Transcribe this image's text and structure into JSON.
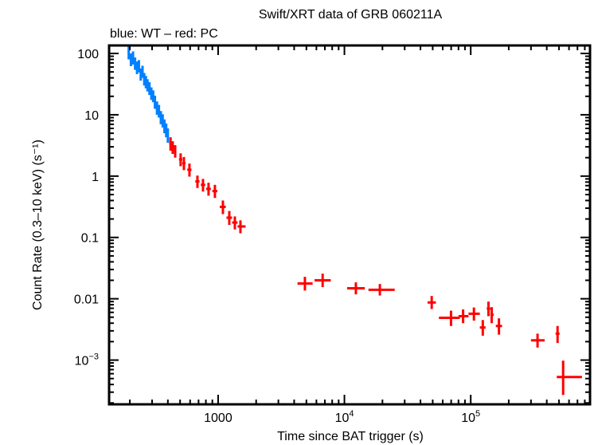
{
  "chart_data": {
    "type": "scatter",
    "title": "Swift/XRT data of GRB 060211A",
    "subtitle": "blue: WT – red: PC",
    "xlabel": "Time since BAT trigger (s)",
    "ylabel": "Count Rate (0.3–10 keV) (s⁻¹)",
    "xscale": "log",
    "yscale": "log",
    "xlim": [
      137,
      880000
    ],
    "ylim": [
      0.00019,
      135
    ],
    "grid": false,
    "x_ticks": [
      {
        "value": 1000,
        "label": "1000",
        "base": "",
        "exp": ""
      },
      {
        "value": 10000,
        "label": "",
        "base": "10",
        "exp": "4"
      },
      {
        "value": 100000,
        "label": "",
        "base": "10",
        "exp": "5"
      }
    ],
    "y_ticks": [
      {
        "value": 100,
        "label": "100",
        "base": "",
        "exp": ""
      },
      {
        "value": 10,
        "label": "10",
        "base": "",
        "exp": ""
      },
      {
        "value": 1,
        "label": "1",
        "base": "",
        "exp": ""
      },
      {
        "value": 0.1,
        "label": "0.1",
        "base": "",
        "exp": ""
      },
      {
        "value": 0.01,
        "label": "0.01",
        "base": "",
        "exp": ""
      },
      {
        "value": 0.001,
        "label": "",
        "base": "10",
        "exp": "−3"
      }
    ],
    "series": [
      {
        "name": "WT",
        "color": "#0080ff",
        "points": [
          {
            "x": 196,
            "y": 105,
            "xerr": [
              192,
              200
            ],
            "yerr": [
              80,
              135
            ]
          },
          {
            "x": 204,
            "y": 80,
            "xerr": [
              200,
              208
            ],
            "yerr": [
              62,
              100
            ]
          },
          {
            "x": 212,
            "y": 85,
            "xerr": [
              208,
              216
            ],
            "yerr": [
              66,
              108
            ]
          },
          {
            "x": 220,
            "y": 68,
            "xerr": [
              216,
              224
            ],
            "yerr": [
              54,
              86
            ]
          },
          {
            "x": 228,
            "y": 58,
            "xerr": [
              224,
              232
            ],
            "yerr": [
              46,
              74
            ]
          },
          {
            "x": 236,
            "y": 62,
            "xerr": [
              232,
              240
            ],
            "yerr": [
              49,
              78
            ]
          },
          {
            "x": 244,
            "y": 45,
            "xerr": [
              240,
              248
            ],
            "yerr": [
              36,
              57
            ]
          },
          {
            "x": 252,
            "y": 50,
            "xerr": [
              248,
              256
            ],
            "yerr": [
              40,
              63
            ]
          },
          {
            "x": 260,
            "y": 38,
            "xerr": [
              256,
              264
            ],
            "yerr": [
              30,
              48
            ]
          },
          {
            "x": 268,
            "y": 34,
            "xerr": [
              264,
              272
            ],
            "yerr": [
              27,
              43
            ]
          },
          {
            "x": 276,
            "y": 30,
            "xerr": [
              272,
              281
            ],
            "yerr": [
              24,
              38
            ]
          },
          {
            "x": 286,
            "y": 27,
            "xerr": [
              281,
              291
            ],
            "yerr": [
              21,
              34
            ]
          },
          {
            "x": 296,
            "y": 22,
            "xerr": [
              291,
              301
            ],
            "yerr": [
              17.5,
              28
            ]
          },
          {
            "x": 306,
            "y": 20,
            "xerr": [
              301,
              311
            ],
            "yerr": [
              16,
              25
            ]
          },
          {
            "x": 316,
            "y": 16,
            "xerr": [
              311,
              322
            ],
            "yerr": [
              12.5,
              20.5
            ]
          },
          {
            "x": 328,
            "y": 13,
            "xerr": [
              322,
              334
            ],
            "yerr": [
              10,
              16.5
            ]
          },
          {
            "x": 340,
            "y": 11.5,
            "xerr": [
              334,
              346
            ],
            "yerr": [
              9,
              14.5
            ]
          },
          {
            "x": 352,
            "y": 9,
            "xerr": [
              346,
              358
            ],
            "yerr": [
              7,
              11.5
            ]
          },
          {
            "x": 364,
            "y": 8,
            "xerr": [
              358,
              370
            ],
            "yerr": [
              6.2,
              10.2
            ]
          },
          {
            "x": 376,
            "y": 6.5,
            "xerr": [
              370,
              382
            ],
            "yerr": [
              5,
              8.4
            ]
          },
          {
            "x": 388,
            "y": 5.6,
            "xerr": [
              382,
              394
            ],
            "yerr": [
              4.3,
              7.2
            ]
          },
          {
            "x": 400,
            "y": 4.6,
            "xerr": [
              394,
              406
            ],
            "yerr": [
              3.5,
              6
            ]
          }
        ]
      },
      {
        "name": "PC",
        "color": "#ff0000",
        "points": [
          {
            "x": 420,
            "y": 3.4,
            "xerr": [
              410,
              430
            ],
            "yerr": [
              2.6,
              4.3
            ]
          },
          {
            "x": 437,
            "y": 2.94,
            "xerr": [
              430,
              445
            ],
            "yerr": [
              2.3,
              3.7
            ]
          },
          {
            "x": 457,
            "y": 2.53,
            "xerr": [
              447,
              467
            ],
            "yerr": [
              2.0,
              3.2
            ]
          },
          {
            "x": 505,
            "y": 1.87,
            "xerr": [
              490,
              520
            ],
            "yerr": [
              1.45,
              2.35
            ]
          },
          {
            "x": 536,
            "y": 1.62,
            "xerr": [
              520,
              552
            ],
            "yerr": [
              1.25,
              2.05
            ]
          },
          {
            "x": 593,
            "y": 1.27,
            "xerr": [
              570,
              615
            ],
            "yerr": [
              0.98,
              1.6
            ]
          },
          {
            "x": 686,
            "y": 0.82,
            "xerr": [
              660,
              712
            ],
            "yerr": [
              0.64,
              1.02
            ]
          },
          {
            "x": 759,
            "y": 0.72,
            "xerr": [
              730,
              790
            ],
            "yerr": [
              0.56,
              0.9
            ]
          },
          {
            "x": 840,
            "y": 0.62,
            "xerr": [
              805,
              875
            ],
            "yerr": [
              0.48,
              0.78
            ]
          },
          {
            "x": 943,
            "y": 0.57,
            "xerr": [
              900,
              985
            ],
            "yerr": [
              0.44,
              0.72
            ]
          },
          {
            "x": 1091,
            "y": 0.315,
            "xerr": [
              1030,
              1150
            ],
            "yerr": [
              0.24,
              0.4
            ]
          },
          {
            "x": 1226,
            "y": 0.21,
            "xerr": [
              1165,
              1290
            ],
            "yerr": [
              0.16,
              0.27
            ]
          },
          {
            "x": 1357,
            "y": 0.175,
            "xerr": [
              1290,
              1425
            ],
            "yerr": [
              0.135,
              0.22
            ]
          },
          {
            "x": 1502,
            "y": 0.151,
            "xerr": [
              1425,
              1650
            ],
            "yerr": [
              0.117,
              0.19
            ]
          },
          {
            "x": 4866,
            "y": 0.0177,
            "xerr": [
              4250,
              5600
            ],
            "yerr": [
              0.0136,
              0.0228
            ]
          },
          {
            "x": 6723,
            "y": 0.02,
            "xerr": [
              5800,
              7800
            ],
            "yerr": [
              0.0155,
              0.0257
            ]
          },
          {
            "x": 12320,
            "y": 0.0148,
            "xerr": [
              10500,
              14500
            ],
            "yerr": [
              0.0118,
              0.0185
            ]
          },
          {
            "x": 19080,
            "y": 0.014,
            "xerr": [
              15500,
              25000
            ],
            "yerr": [
              0.0113,
              0.0174
            ]
          },
          {
            "x": 49100,
            "y": 0.0087,
            "xerr": [
              45500,
              53000
            ],
            "yerr": [
              0.0068,
              0.0111
            ]
          },
          {
            "x": 69800,
            "y": 0.0049,
            "xerr": [
              56000,
              82000
            ],
            "yerr": [
              0.0036,
              0.0064
            ]
          },
          {
            "x": 87000,
            "y": 0.0052,
            "xerr": [
              80000,
              96000
            ],
            "yerr": [
              0.004,
              0.0067
            ]
          },
          {
            "x": 106000,
            "y": 0.0057,
            "xerr": [
              96000,
              118000
            ],
            "yerr": [
              0.0044,
              0.0072
            ]
          },
          {
            "x": 124600,
            "y": 0.0034,
            "xerr": [
              118000,
              131000
            ],
            "yerr": [
              0.0025,
              0.0045
            ]
          },
          {
            "x": 138200,
            "y": 0.0069,
            "xerr": [
              134000,
              143000
            ],
            "yerr": [
              0.0052,
              0.009
            ]
          },
          {
            "x": 146500,
            "y": 0.0055,
            "xerr": [
              143000,
              152000
            ],
            "yerr": [
              0.004,
              0.0073
            ]
          },
          {
            "x": 167300,
            "y": 0.0036,
            "xerr": [
              158000,
              177000
            ],
            "yerr": [
              0.0026,
              0.0048
            ]
          },
          {
            "x": 338000,
            "y": 0.0021,
            "xerr": [
              300000,
              385000
            ],
            "yerr": [
              0.0016,
              0.0027
            ]
          },
          {
            "x": 487000,
            "y": 0.0027,
            "xerr": [
              470000,
              505000
            ],
            "yerr": [
              0.0019,
              0.0036
            ]
          },
          {
            "x": 539000,
            "y": 0.00053,
            "xerr": [
              480000,
              760000
            ],
            "yerr": [
              0.00027,
              0.00098
            ]
          }
        ]
      }
    ]
  }
}
